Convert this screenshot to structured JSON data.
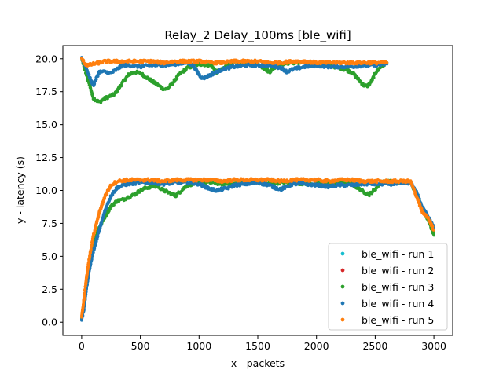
{
  "chart_data": {
    "type": "scatter",
    "title": "Relay_2 Delay_100ms [ble_wifi]",
    "xlabel": "x - packets",
    "ylabel": "y - latency (s)",
    "xlim": [
      -160,
      3160
    ],
    "ylim": [
      -1.0,
      21.0
    ],
    "xticks": [
      0,
      500,
      1000,
      1500,
      2000,
      2500,
      3000
    ],
    "xtick_labels": [
      "0",
      "500",
      "1000",
      "1500",
      "2000",
      "2500",
      "3000"
    ],
    "yticks": [
      0.0,
      2.5,
      5.0,
      7.5,
      10.0,
      12.5,
      15.0,
      17.5,
      20.0
    ],
    "ytick_labels": [
      "0.0",
      "2.5",
      "5.0",
      "7.5",
      "10.0",
      "12.5",
      "15.0",
      "17.5",
      "20.0"
    ],
    "grid": false,
    "legend_position": "bottom-right",
    "series": [
      {
        "name": "ble_wifi - run 1",
        "color": "#17becf",
        "points": []
      },
      {
        "name": "ble_wifi - run 2",
        "color": "#d62728",
        "points": []
      },
      {
        "name": "ble_wifi - run 3",
        "color": "#2ca02c",
        "segments": [
          [
            [
              0,
              20.0
            ],
            [
              50,
              18.5
            ],
            [
              100,
              17.0
            ],
            [
              150,
              16.7
            ],
            [
              200,
              17.0
            ],
            [
              280,
              17.3
            ],
            [
              350,
              18.2
            ],
            [
              400,
              18.8
            ],
            [
              450,
              19.0
            ],
            [
              500,
              18.9
            ],
            [
              550,
              18.6
            ],
            [
              600,
              18.3
            ],
            [
              650,
              18.0
            ],
            [
              700,
              17.7
            ],
            [
              730,
              17.7
            ],
            [
              780,
              18.2
            ],
            [
              830,
              18.8
            ],
            [
              900,
              19.3
            ],
            [
              1000,
              19.6
            ],
            [
              1100,
              19.5
            ],
            [
              1150,
              19.0
            ],
            [
              1200,
              19.2
            ],
            [
              1250,
              19.6
            ],
            [
              1300,
              19.7
            ],
            [
              1400,
              19.7
            ],
            [
              1500,
              19.6
            ],
            [
              1550,
              19.3
            ],
            [
              1600,
              19.0
            ],
            [
              1650,
              19.4
            ],
            [
              1700,
              19.6
            ],
            [
              1800,
              19.7
            ],
            [
              1900,
              19.7
            ],
            [
              2000,
              19.6
            ],
            [
              2100,
              19.5
            ],
            [
              2200,
              19.3
            ],
            [
              2300,
              19.0
            ],
            [
              2350,
              18.5
            ],
            [
              2400,
              18.0
            ],
            [
              2430,
              17.9
            ],
            [
              2470,
              18.3
            ],
            [
              2500,
              18.9
            ],
            [
              2550,
              19.4
            ],
            [
              2600,
              19.7
            ]
          ],
          [
            [
              0,
              0.3
            ],
            [
              20,
              1.5
            ],
            [
              40,
              3.0
            ],
            [
              60,
              4.3
            ],
            [
              80,
              5.3
            ],
            [
              100,
              6.0
            ],
            [
              150,
              7.2
            ],
            [
              200,
              8.0
            ],
            [
              250,
              8.8
            ],
            [
              300,
              9.2
            ],
            [
              350,
              9.3
            ],
            [
              400,
              9.5
            ],
            [
              450,
              9.7
            ],
            [
              500,
              10.0
            ],
            [
              550,
              10.2
            ],
            [
              600,
              10.3
            ],
            [
              650,
              10.3
            ],
            [
              700,
              10.0
            ],
            [
              750,
              9.8
            ],
            [
              800,
              9.6
            ],
            [
              850,
              10.0
            ],
            [
              900,
              10.4
            ],
            [
              1000,
              10.6
            ],
            [
              1100,
              10.6
            ],
            [
              1200,
              10.5
            ],
            [
              1300,
              10.5
            ],
            [
              1400,
              10.6
            ],
            [
              1500,
              10.6
            ],
            [
              1600,
              10.5
            ],
            [
              1700,
              10.6
            ],
            [
              1800,
              10.6
            ],
            [
              1900,
              10.5
            ],
            [
              2000,
              10.5
            ],
            [
              2100,
              10.5
            ],
            [
              2200,
              10.6
            ],
            [
              2300,
              10.5
            ],
            [
              2350,
              10.2
            ],
            [
              2400,
              9.9
            ],
            [
              2450,
              9.7
            ],
            [
              2500,
              10.1
            ],
            [
              2550,
              10.6
            ],
            [
              2600,
              10.7
            ],
            [
              2700,
              10.6
            ],
            [
              2800,
              10.6
            ],
            [
              2850,
              9.8
            ],
            [
              2900,
              8.6
            ],
            [
              2950,
              7.8
            ],
            [
              3000,
              6.6
            ]
          ]
        ]
      },
      {
        "name": "ble_wifi - run 4",
        "color": "#1f77b4",
        "segments": [
          [
            [
              0,
              20.0
            ],
            [
              30,
              19.5
            ],
            [
              60,
              18.8
            ],
            [
              80,
              18.3
            ],
            [
              100,
              18.0
            ],
            [
              130,
              18.6
            ],
            [
              150,
              19.0
            ],
            [
              200,
              19.0
            ],
            [
              250,
              18.9
            ],
            [
              300,
              19.2
            ],
            [
              350,
              19.5
            ],
            [
              400,
              19.5
            ],
            [
              500,
              19.4
            ],
            [
              600,
              19.5
            ],
            [
              700,
              19.5
            ],
            [
              800,
              19.6
            ],
            [
              900,
              19.7
            ],
            [
              950,
              19.5
            ],
            [
              1000,
              18.8
            ],
            [
              1030,
              18.5
            ],
            [
              1080,
              18.7
            ],
            [
              1150,
              19.0
            ],
            [
              1200,
              19.2
            ],
            [
              1300,
              19.4
            ],
            [
              1400,
              19.5
            ],
            [
              1500,
              19.5
            ],
            [
              1600,
              19.5
            ],
            [
              1700,
              19.3
            ],
            [
              1750,
              19.0
            ],
            [
              1800,
              19.2
            ],
            [
              1900,
              19.4
            ],
            [
              2000,
              19.5
            ],
            [
              2100,
              19.4
            ],
            [
              2200,
              19.4
            ],
            [
              2300,
              19.4
            ],
            [
              2400,
              19.5
            ],
            [
              2500,
              19.5
            ],
            [
              2600,
              19.6
            ]
          ],
          [
            [
              0,
              0.2
            ],
            [
              20,
              1.0
            ],
            [
              40,
              2.5
            ],
            [
              60,
              3.7
            ],
            [
              80,
              4.6
            ],
            [
              100,
              5.4
            ],
            [
              150,
              7.0
            ],
            [
              200,
              8.5
            ],
            [
              250,
              9.6
            ],
            [
              300,
              10.2
            ],
            [
              350,
              10.4
            ],
            [
              400,
              10.5
            ],
            [
              500,
              10.6
            ],
            [
              600,
              10.6
            ],
            [
              700,
              10.5
            ],
            [
              800,
              10.6
            ],
            [
              900,
              10.6
            ],
            [
              1000,
              10.5
            ],
            [
              1050,
              10.3
            ],
            [
              1100,
              10.1
            ],
            [
              1150,
              10.0
            ],
            [
              1200,
              10.1
            ],
            [
              1250,
              10.2
            ],
            [
              1300,
              10.4
            ],
            [
              1400,
              10.5
            ],
            [
              1500,
              10.6
            ],
            [
              1600,
              10.4
            ],
            [
              1650,
              10.2
            ],
            [
              1700,
              10.1
            ],
            [
              1750,
              10.3
            ],
            [
              1800,
              10.5
            ],
            [
              1900,
              10.5
            ],
            [
              2000,
              10.4
            ],
            [
              2100,
              10.3
            ],
            [
              2200,
              10.4
            ],
            [
              2300,
              10.4
            ],
            [
              2400,
              10.5
            ],
            [
              2500,
              10.5
            ],
            [
              2600,
              10.5
            ],
            [
              2700,
              10.5
            ],
            [
              2800,
              10.6
            ],
            [
              2850,
              9.9
            ],
            [
              2900,
              8.8
            ],
            [
              2950,
              8.0
            ],
            [
              3000,
              7.2
            ]
          ]
        ]
      },
      {
        "name": "ble_wifi - run 5",
        "color": "#ff7f0e",
        "segments": [
          [
            [
              0,
              20.0
            ],
            [
              30,
              19.6
            ],
            [
              60,
              19.5
            ],
            [
              100,
              19.6
            ],
            [
              150,
              19.7
            ],
            [
              200,
              19.8
            ],
            [
              300,
              19.8
            ],
            [
              400,
              19.8
            ],
            [
              500,
              19.8
            ],
            [
              600,
              19.8
            ],
            [
              700,
              19.7
            ],
            [
              800,
              19.8
            ],
            [
              900,
              19.8
            ],
            [
              1000,
              19.8
            ],
            [
              1100,
              19.7
            ],
            [
              1200,
              19.7
            ],
            [
              1300,
              19.8
            ],
            [
              1400,
              19.8
            ],
            [
              1500,
              19.8
            ],
            [
              1600,
              19.7
            ],
            [
              1700,
              19.7
            ],
            [
              1800,
              19.8
            ],
            [
              1900,
              19.8
            ],
            [
              2000,
              19.7
            ],
            [
              2100,
              19.7
            ],
            [
              2200,
              19.7
            ],
            [
              2300,
              19.7
            ],
            [
              2400,
              19.7
            ],
            [
              2500,
              19.7
            ],
            [
              2600,
              19.7
            ]
          ],
          [
            [
              0,
              0.4
            ],
            [
              20,
              1.8
            ],
            [
              40,
              3.3
            ],
            [
              60,
              4.6
            ],
            [
              80,
              5.6
            ],
            [
              100,
              6.6
            ],
            [
              150,
              8.3
            ],
            [
              200,
              9.6
            ],
            [
              250,
              10.4
            ],
            [
              300,
              10.7
            ],
            [
              400,
              10.8
            ],
            [
              500,
              10.8
            ],
            [
              600,
              10.8
            ],
            [
              700,
              10.7
            ],
            [
              800,
              10.8
            ],
            [
              900,
              10.8
            ],
            [
              1000,
              10.8
            ],
            [
              1100,
              10.8
            ],
            [
              1200,
              10.7
            ],
            [
              1300,
              10.8
            ],
            [
              1400,
              10.8
            ],
            [
              1500,
              10.8
            ],
            [
              1600,
              10.8
            ],
            [
              1700,
              10.7
            ],
            [
              1800,
              10.8
            ],
            [
              1900,
              10.8
            ],
            [
              2000,
              10.8
            ],
            [
              2100,
              10.7
            ],
            [
              2200,
              10.8
            ],
            [
              2300,
              10.8
            ],
            [
              2400,
              10.7
            ],
            [
              2500,
              10.7
            ],
            [
              2600,
              10.7
            ],
            [
              2700,
              10.7
            ],
            [
              2800,
              10.7
            ],
            [
              2850,
              9.6
            ],
            [
              2900,
              8.4
            ],
            [
              2950,
              7.9
            ],
            [
              3000,
              7.0
            ]
          ]
        ]
      }
    ]
  }
}
